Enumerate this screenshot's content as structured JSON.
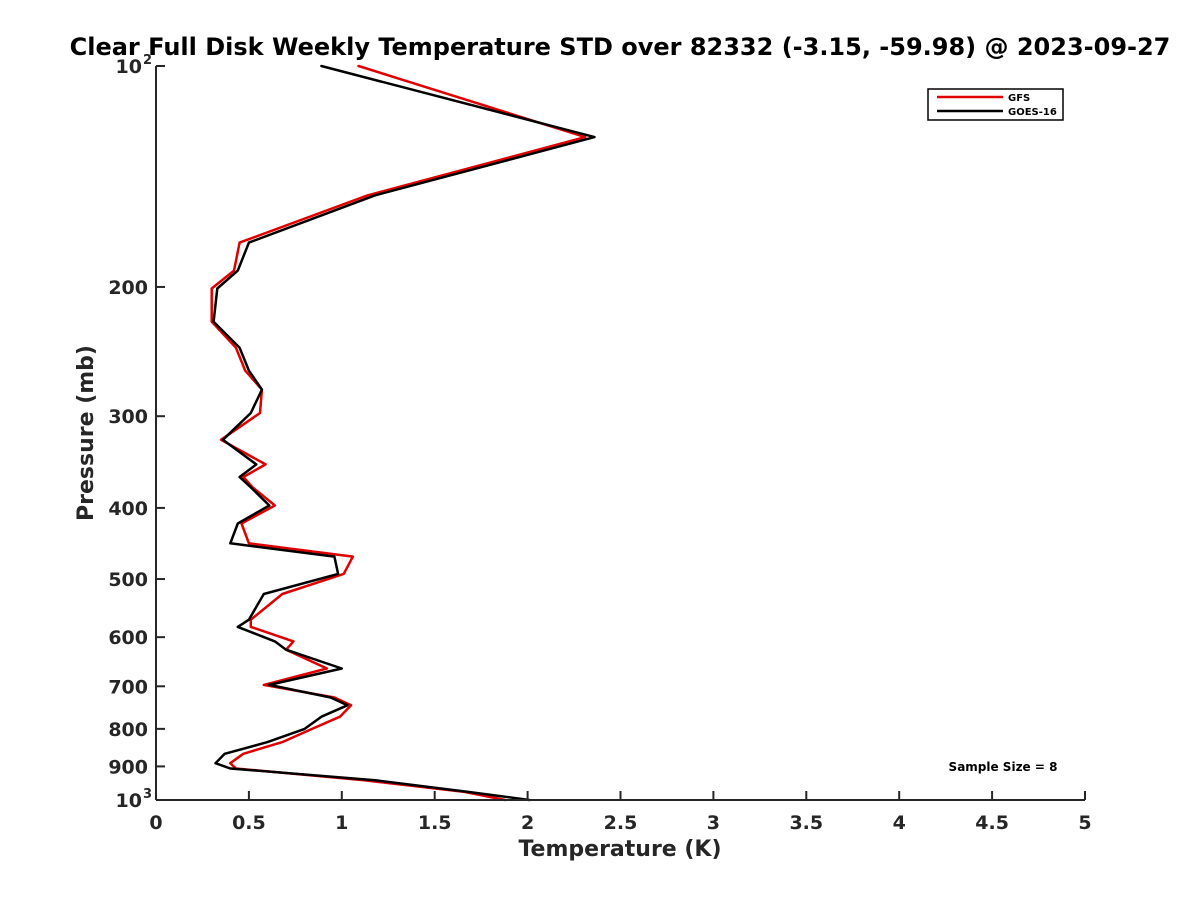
{
  "chart_data": {
    "type": "line",
    "title": "Clear Full Disk Weekly Temperature STD over 82332 (-3.15, -59.98) @ 2023-09-27",
    "xlabel": "Temperature (K)",
    "ylabel": "Pressure (mb)",
    "xlim": [
      0,
      5
    ],
    "ylim": [
      100,
      1000
    ],
    "y_scale": "log",
    "y_reversed": true,
    "grid": false,
    "legend_position": "top-right",
    "annotation": "Sample Size = 8",
    "x_ticks": [
      {
        "value": 0,
        "label": "0"
      },
      {
        "value": 0.5,
        "label": "0.5"
      },
      {
        "value": 1,
        "label": "1"
      },
      {
        "value": 1.5,
        "label": "1.5"
      },
      {
        "value": 2,
        "label": "2"
      },
      {
        "value": 2.5,
        "label": "2.5"
      },
      {
        "value": 3,
        "label": "3"
      },
      {
        "value": 3.5,
        "label": "3.5"
      },
      {
        "value": 4,
        "label": "4"
      },
      {
        "value": 4.5,
        "label": "4.5"
      },
      {
        "value": 5,
        "label": "5"
      }
    ],
    "y_ticks": [
      {
        "value": 100,
        "label": "10",
        "exp": "2"
      },
      {
        "value": 200,
        "label": "200"
      },
      {
        "value": 300,
        "label": "300"
      },
      {
        "value": 400,
        "label": "400"
      },
      {
        "value": 500,
        "label": "500"
      },
      {
        "value": 600,
        "label": "600"
      },
      {
        "value": 700,
        "label": "700"
      },
      {
        "value": 800,
        "label": "800"
      },
      {
        "value": 900,
        "label": "900"
      },
      {
        "value": 1000,
        "label": "10",
        "exp": "3"
      }
    ],
    "series": [
      {
        "name": "GFS",
        "color": "#e00000",
        "points": [
          [
            1.09,
            100
          ],
          [
            2.31,
            125
          ],
          [
            1.14,
            150
          ],
          [
            0.45,
            174
          ],
          [
            0.42,
            190
          ],
          [
            0.3,
            201
          ],
          [
            0.3,
            223
          ],
          [
            0.43,
            242
          ],
          [
            0.48,
            260
          ],
          [
            0.57,
            276
          ],
          [
            0.56,
            297
          ],
          [
            0.35,
            323
          ],
          [
            0.59,
            349
          ],
          [
            0.47,
            363
          ],
          [
            0.52,
            375
          ],
          [
            0.64,
            397
          ],
          [
            0.46,
            420
          ],
          [
            0.5,
            447
          ],
          [
            1.06,
            466
          ],
          [
            1.01,
            492
          ],
          [
            0.68,
            524
          ],
          [
            0.51,
            568
          ],
          [
            0.51,
            581
          ],
          [
            0.74,
            608
          ],
          [
            0.7,
            624
          ],
          [
            0.92,
            662
          ],
          [
            0.58,
            697
          ],
          [
            0.96,
            725
          ],
          [
            1.05,
            743
          ],
          [
            0.99,
            770
          ],
          [
            0.84,
            800
          ],
          [
            0.68,
            834
          ],
          [
            0.47,
            865
          ],
          [
            0.4,
            891
          ],
          [
            0.43,
            906
          ],
          [
            1.12,
            940
          ],
          [
            1.66,
            975
          ],
          [
            1.88,
            1000
          ]
        ]
      },
      {
        "name": "GOES-16",
        "color": "#000000",
        "points": [
          [
            0.89,
            100
          ],
          [
            2.36,
            125
          ],
          [
            1.18,
            150
          ],
          [
            0.5,
            174
          ],
          [
            0.44,
            190
          ],
          [
            0.33,
            201
          ],
          [
            0.31,
            223
          ],
          [
            0.45,
            242
          ],
          [
            0.5,
            260
          ],
          [
            0.57,
            276
          ],
          [
            0.51,
            297
          ],
          [
            0.36,
            323
          ],
          [
            0.54,
            349
          ],
          [
            0.45,
            363
          ],
          [
            0.51,
            375
          ],
          [
            0.61,
            397
          ],
          [
            0.44,
            420
          ],
          [
            0.4,
            447
          ],
          [
            0.96,
            466
          ],
          [
            0.98,
            492
          ],
          [
            0.58,
            524
          ],
          [
            0.5,
            568
          ],
          [
            0.44,
            581
          ],
          [
            0.64,
            608
          ],
          [
            0.7,
            624
          ],
          [
            1.0,
            662
          ],
          [
            0.61,
            697
          ],
          [
            0.94,
            725
          ],
          [
            1.03,
            743
          ],
          [
            0.89,
            770
          ],
          [
            0.8,
            800
          ],
          [
            0.6,
            834
          ],
          [
            0.37,
            865
          ],
          [
            0.32,
            891
          ],
          [
            0.4,
            906
          ],
          [
            1.18,
            940
          ],
          [
            1.68,
            975
          ],
          [
            2.01,
            1000
          ]
        ]
      }
    ]
  }
}
